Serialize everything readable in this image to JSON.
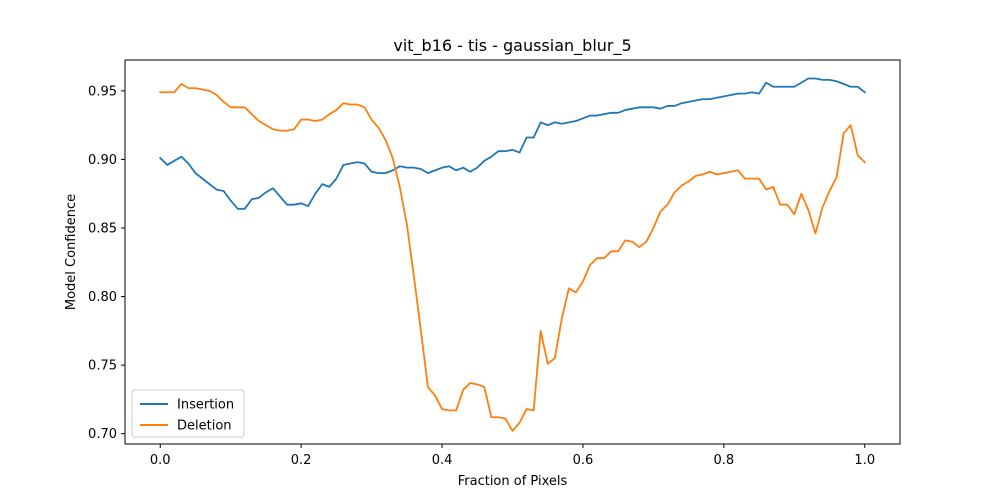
{
  "chart_data": {
    "type": "line",
    "title": "vit_b16 - tis - gaussian_blur_5",
    "xlabel": "Fraction of Pixels",
    "ylabel": "Model Confidence",
    "xlim": [
      -0.05,
      1.05
    ],
    "ylim": [
      0.6925,
      0.9725
    ],
    "xticks": [
      0.0,
      0.2,
      0.4,
      0.6,
      0.8,
      1.0
    ],
    "xtick_labels": [
      "0.0",
      "0.2",
      "0.4",
      "0.6",
      "0.8",
      "1.0"
    ],
    "yticks": [
      0.7,
      0.75,
      0.8,
      0.85,
      0.9,
      0.95
    ],
    "ytick_labels": [
      "0.70",
      "0.75",
      "0.80",
      "0.85",
      "0.90",
      "0.95"
    ],
    "grid": false,
    "legend_position": "lower-left",
    "series": [
      {
        "name": "Insertion",
        "color": "#1f77b4",
        "x": [
          0.0,
          0.01,
          0.02,
          0.03,
          0.04,
          0.05,
          0.06,
          0.07,
          0.08,
          0.09,
          0.1,
          0.11,
          0.12,
          0.13,
          0.14,
          0.15,
          0.16,
          0.17,
          0.18,
          0.19,
          0.2,
          0.21,
          0.22,
          0.23,
          0.24,
          0.25,
          0.26,
          0.27,
          0.28,
          0.29,
          0.3,
          0.31,
          0.32,
          0.33,
          0.34,
          0.35,
          0.36,
          0.37,
          0.38,
          0.39,
          0.4,
          0.41,
          0.42,
          0.43,
          0.44,
          0.45,
          0.46,
          0.47,
          0.48,
          0.49,
          0.5,
          0.51,
          0.52,
          0.53,
          0.54,
          0.55,
          0.56,
          0.57,
          0.58,
          0.59,
          0.6,
          0.61,
          0.62,
          0.63,
          0.64,
          0.65,
          0.66,
          0.67,
          0.68,
          0.69,
          0.7,
          0.71,
          0.72,
          0.73,
          0.74,
          0.75,
          0.76,
          0.77,
          0.78,
          0.79,
          0.8,
          0.81,
          0.82,
          0.83,
          0.84,
          0.85,
          0.86,
          0.87,
          0.88,
          0.89,
          0.9,
          0.91,
          0.92,
          0.93,
          0.94,
          0.95,
          0.96,
          0.97,
          0.98,
          0.99,
          1.0
        ],
        "y": [
          0.901,
          0.896,
          0.899,
          0.902,
          0.897,
          0.89,
          0.886,
          0.882,
          0.878,
          0.877,
          0.87,
          0.864,
          0.864,
          0.871,
          0.872,
          0.876,
          0.879,
          0.873,
          0.867,
          0.867,
          0.868,
          0.866,
          0.875,
          0.882,
          0.88,
          0.886,
          0.896,
          0.897,
          0.898,
          0.897,
          0.891,
          0.89,
          0.89,
          0.892,
          0.895,
          0.894,
          0.894,
          0.893,
          0.89,
          0.892,
          0.894,
          0.895,
          0.892,
          0.894,
          0.891,
          0.894,
          0.899,
          0.902,
          0.906,
          0.906,
          0.907,
          0.905,
          0.916,
          0.916,
          0.927,
          0.925,
          0.927,
          0.926,
          0.927,
          0.928,
          0.93,
          0.932,
          0.932,
          0.933,
          0.934,
          0.934,
          0.936,
          0.937,
          0.938,
          0.938,
          0.938,
          0.937,
          0.939,
          0.939,
          0.941,
          0.942,
          0.943,
          0.944,
          0.944,
          0.945,
          0.946,
          0.947,
          0.948,
          0.948,
          0.949,
          0.948,
          0.956,
          0.953,
          0.953,
          0.953,
          0.953,
          0.956,
          0.959,
          0.959,
          0.958,
          0.958,
          0.957,
          0.955,
          0.953,
          0.953,
          0.949
        ]
      },
      {
        "name": "Deletion",
        "color": "#ff7f0e",
        "x": [
          0.0,
          0.01,
          0.02,
          0.03,
          0.04,
          0.05,
          0.06,
          0.07,
          0.08,
          0.09,
          0.1,
          0.11,
          0.12,
          0.13,
          0.14,
          0.15,
          0.16,
          0.17,
          0.18,
          0.19,
          0.2,
          0.21,
          0.22,
          0.23,
          0.24,
          0.25,
          0.26,
          0.27,
          0.28,
          0.29,
          0.3,
          0.31,
          0.32,
          0.33,
          0.34,
          0.35,
          0.36,
          0.37,
          0.38,
          0.39,
          0.4,
          0.41,
          0.42,
          0.43,
          0.44,
          0.45,
          0.46,
          0.47,
          0.48,
          0.49,
          0.5,
          0.51,
          0.52,
          0.53,
          0.54,
          0.55,
          0.56,
          0.57,
          0.58,
          0.59,
          0.6,
          0.61,
          0.62,
          0.63,
          0.64,
          0.65,
          0.66,
          0.67,
          0.68,
          0.69,
          0.7,
          0.71,
          0.72,
          0.73,
          0.74,
          0.75,
          0.76,
          0.77,
          0.78,
          0.79,
          0.8,
          0.81,
          0.82,
          0.83,
          0.84,
          0.85,
          0.86,
          0.87,
          0.88,
          0.89,
          0.9,
          0.91,
          0.92,
          0.93,
          0.94,
          0.95,
          0.96,
          0.97,
          0.98,
          0.99,
          1.0
        ],
        "y": [
          0.949,
          0.949,
          0.949,
          0.955,
          0.952,
          0.952,
          0.951,
          0.95,
          0.947,
          0.942,
          0.938,
          0.938,
          0.938,
          0.933,
          0.928,
          0.925,
          0.922,
          0.921,
          0.921,
          0.922,
          0.929,
          0.929,
          0.928,
          0.929,
          0.933,
          0.936,
          0.941,
          0.94,
          0.94,
          0.938,
          0.929,
          0.923,
          0.914,
          0.901,
          0.88,
          0.853,
          0.815,
          0.775,
          0.734,
          0.728,
          0.718,
          0.717,
          0.717,
          0.732,
          0.737,
          0.736,
          0.734,
          0.712,
          0.712,
          0.711,
          0.702,
          0.708,
          0.718,
          0.717,
          0.775,
          0.751,
          0.755,
          0.784,
          0.806,
          0.803,
          0.811,
          0.823,
          0.828,
          0.828,
          0.833,
          0.833,
          0.841,
          0.84,
          0.836,
          0.84,
          0.85,
          0.862,
          0.867,
          0.876,
          0.881,
          0.884,
          0.888,
          0.889,
          0.891,
          0.889,
          0.89,
          0.891,
          0.892,
          0.886,
          0.886,
          0.886,
          0.878,
          0.88,
          0.867,
          0.867,
          0.86,
          0.875,
          0.863,
          0.846,
          0.865,
          0.877,
          0.887,
          0.919,
          0.925,
          0.903,
          0.898
        ]
      }
    ]
  }
}
